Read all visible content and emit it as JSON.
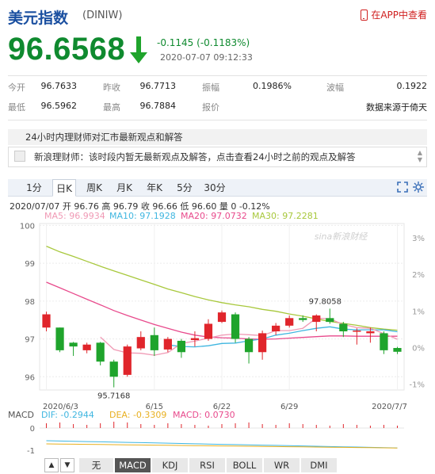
{
  "header": {
    "title": "美元指数",
    "code": "(DINIW)",
    "app_link": "在APP中查看"
  },
  "quote": {
    "price": "96.6568",
    "change": "-0.1145 (-0.1183%)",
    "timestamp": "2020-07-07 09:12:33"
  },
  "stats": [
    [
      {
        "label": "今开",
        "value": "96.7633"
      },
      {
        "label": "昨收",
        "value": "96.7713"
      },
      {
        "label": "振幅",
        "value": "0.1986%"
      },
      {
        "label": "波幅",
        "value": "0.1922"
      }
    ],
    [
      {
        "label": "最低",
        "value": "96.5962"
      },
      {
        "label": "最高",
        "value": "96.7884"
      },
      {
        "label": "报价",
        "value": ""
      },
      {
        "label": "",
        "value": "数据来源于倚天"
      }
    ]
  ],
  "views": {
    "heading": "24小时内理财师对汇市最新观点和解答",
    "message": "新浪理财师：该时段内暂无最新观点及解答，点击查看24小时之前的观点及解答"
  },
  "period_tabs": [
    "1分",
    "日K",
    "周K",
    "月K",
    "年K",
    "5分",
    "30分"
  ],
  "active_period": "日K",
  "ohlc_info": "2020/07/07 开 96.76 高 96.79 收 96.66 低 96.60 量 0 -0.12%",
  "ma": {
    "ma5": "MA5: 96.9934",
    "ma10": "MA10: 97.1928",
    "ma20": "MA20: 97.0732",
    "ma30": "MA30: 97.2281"
  },
  "colors": {
    "up": "#e0252b",
    "down": "#1fa42c",
    "ma5": "#f09ab5",
    "ma10": "#3fb6e0",
    "ma20": "#e84a8c",
    "ma30": "#a8c83c",
    "price": "#0f8a2f",
    "brand": "#1a4fa0"
  },
  "watermark": "sina新浪财经",
  "chart_data": {
    "type": "candlestick",
    "y_ticks": [
      "100",
      "99",
      "98",
      "97",
      "96"
    ],
    "pct_ticks": [
      "3%",
      "2%",
      "1%",
      "0%",
      "-1%"
    ],
    "x_labels": [
      "2020/6/3",
      "6/15",
      "6/22",
      "6/29",
      "2020/7/7"
    ],
    "max_label": "97.8058",
    "min_label": "95.7168",
    "candles": [
      {
        "o": 97.3,
        "c": 97.65,
        "h": 97.72,
        "l": 97.2
      },
      {
        "o": 97.3,
        "c": 96.7,
        "h": 97.3,
        "l": 96.65
      },
      {
        "o": 96.9,
        "c": 96.8,
        "h": 96.92,
        "l": 96.55
      },
      {
        "o": 96.7,
        "c": 96.85,
        "h": 96.9,
        "l": 96.62
      },
      {
        "o": 96.9,
        "c": 96.4,
        "h": 96.92,
        "l": 96.3
      },
      {
        "o": 96.4,
        "c": 96.0,
        "h": 96.45,
        "l": 95.72
      },
      {
        "o": 96.05,
        "c": 96.8,
        "h": 96.85,
        "l": 96.0
      },
      {
        "o": 96.75,
        "c": 97.05,
        "h": 97.2,
        "l": 96.7
      },
      {
        "o": 97.1,
        "c": 96.7,
        "h": 97.3,
        "l": 96.55
      },
      {
        "o": 96.72,
        "c": 97.0,
        "h": 97.05,
        "l": 96.65
      },
      {
        "o": 96.95,
        "c": 96.65,
        "h": 97.0,
        "l": 96.5
      },
      {
        "o": 96.97,
        "c": 97.02,
        "h": 97.2,
        "l": 96.8
      },
      {
        "o": 97.0,
        "c": 97.4,
        "h": 97.52,
        "l": 96.95
      },
      {
        "o": 97.45,
        "c": 97.7,
        "h": 97.75,
        "l": 97.42
      },
      {
        "o": 97.65,
        "c": 97.0,
        "h": 97.7,
        "l": 96.9
      },
      {
        "o": 97.0,
        "c": 96.65,
        "h": 97.05,
        "l": 96.35
      },
      {
        "o": 96.65,
        "c": 97.15,
        "h": 97.22,
        "l": 96.45
      },
      {
        "o": 97.2,
        "c": 97.35,
        "h": 97.42,
        "l": 97.1
      },
      {
        "o": 97.35,
        "c": 97.55,
        "h": 97.62,
        "l": 97.3
      },
      {
        "o": 97.55,
        "c": 97.5,
        "h": 97.62,
        "l": 97.45
      },
      {
        "o": 97.45,
        "c": 97.62,
        "h": 97.65,
        "l": 97.2
      },
      {
        "o": 97.55,
        "c": 97.45,
        "h": 97.8,
        "l": 97.4
      },
      {
        "o": 97.4,
        "c": 97.2,
        "h": 97.45,
        "l": 97.05
      },
      {
        "o": 97.2,
        "c": 97.22,
        "h": 97.28,
        "l": 96.85
      },
      {
        "o": 97.15,
        "c": 97.2,
        "h": 97.3,
        "l": 96.9
      },
      {
        "o": 97.15,
        "c": 96.7,
        "h": 97.2,
        "l": 96.6
      },
      {
        "o": 96.76,
        "c": 96.66,
        "h": 96.79,
        "l": 96.6
      }
    ],
    "ma5": [
      null,
      null,
      null,
      null,
      97.05,
      96.72,
      96.63,
      96.62,
      96.57,
      96.64,
      96.88,
      96.94,
      97.02,
      97.1,
      97.13,
      97.11,
      97.09,
      97.22,
      97.22,
      97.28,
      97.55,
      97.53,
      97.38,
      97.3,
      97.28,
      97.14,
      96.99
    ],
    "ma10": [
      null,
      null,
      null,
      null,
      null,
      null,
      null,
      null,
      null,
      96.84,
      96.8,
      96.79,
      96.82,
      96.88,
      96.89,
      96.95,
      97.0,
      97.1,
      97.15,
      97.22,
      97.28,
      97.32,
      97.26,
      97.24,
      97.24,
      97.24,
      97.19
    ],
    "ma20": [
      98.5,
      98.35,
      98.2,
      98.05,
      97.9,
      97.75,
      97.62,
      97.5,
      97.38,
      97.28,
      97.18,
      97.1,
      97.05,
      97.03,
      97.02,
      97.0,
      96.99,
      97.0,
      97.02,
      97.04,
      97.06,
      97.08,
      97.08,
      97.07,
      97.07,
      97.07,
      97.07
    ],
    "ma30": [
      99.45,
      99.3,
      99.18,
      99.05,
      98.92,
      98.8,
      98.68,
      98.56,
      98.44,
      98.32,
      98.22,
      98.12,
      98.03,
      97.96,
      97.9,
      97.85,
      97.78,
      97.73,
      97.66,
      97.6,
      97.53,
      97.46,
      97.41,
      97.36,
      97.3,
      97.26,
      97.23
    ],
    "ylim": [
      95.65,
      100.05
    ]
  },
  "macd": {
    "label": "MACD",
    "dif": "DIF: -0.2944",
    "dea": "DEA: -0.3309",
    "macd": "MACD: 0.0730",
    "ticks": [
      "0",
      "-1"
    ]
  },
  "indicator_tabs": [
    "无",
    "MACD",
    "KDJ",
    "RSI",
    "BOLL",
    "WR",
    "DMI"
  ],
  "active_indicator": "MACD"
}
